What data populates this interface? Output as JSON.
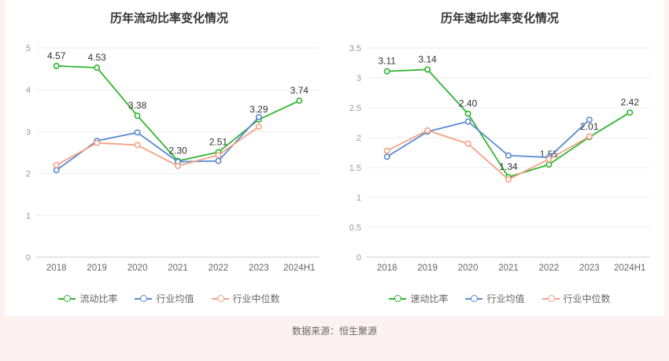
{
  "page": {
    "source_note": "数据来源：恒生聚源",
    "background_color": "#fdf1f1"
  },
  "colors": {
    "green": "#2eb52e",
    "blue": "#5b8ad4",
    "orange": "#f4a286",
    "grid": "#ededed",
    "axis": "#cccccc",
    "ytick_text": "#999999",
    "xtick_text": "#666666",
    "value_label_text": "#333333"
  },
  "chart_data": [
    {
      "type": "line",
      "title": "历年流动比率变化情况",
      "categories": [
        "2018",
        "2019",
        "2020",
        "2021",
        "2022",
        "2023",
        "2024H1"
      ],
      "ylim": [
        0,
        5
      ],
      "yticks": [
        0,
        1,
        2,
        3,
        4,
        5
      ],
      "grid": true,
      "legend_position": "bottom",
      "series": [
        {
          "name": "流动比率",
          "color": "green",
          "labeled": true,
          "values": [
            4.57,
            4.53,
            3.38,
            2.3,
            2.51,
            3.29,
            3.74
          ],
          "labels": [
            "4.57",
            "4.53",
            "3.38",
            "2.30",
            "2.51",
            "3.29",
            "3.74"
          ]
        },
        {
          "name": "行业均值",
          "color": "blue",
          "labeled": false,
          "values": [
            2.08,
            2.78,
            2.98,
            2.28,
            2.3,
            3.35,
            null
          ]
        },
        {
          "name": "行业中位数",
          "color": "orange",
          "labeled": false,
          "values": [
            2.2,
            2.73,
            2.68,
            2.18,
            2.44,
            3.12,
            null
          ]
        }
      ]
    },
    {
      "type": "line",
      "title": "历年速动比率变化情况",
      "categories": [
        "2018",
        "2019",
        "2020",
        "2021",
        "2022",
        "2023",
        "2024H1"
      ],
      "ylim": [
        0,
        3.5
      ],
      "yticks": [
        0,
        0.5,
        1,
        1.5,
        2,
        2.5,
        3,
        3.5
      ],
      "grid": true,
      "legend_position": "bottom",
      "series": [
        {
          "name": "速动比率",
          "color": "green",
          "labeled": true,
          "values": [
            3.11,
            3.14,
            2.4,
            1.34,
            1.55,
            2.01,
            2.42
          ],
          "labels": [
            "3.11",
            "3.14",
            "2.40",
            "1.34",
            "1.55",
            "2.01",
            "2.42"
          ]
        },
        {
          "name": "行业均值",
          "color": "blue",
          "labeled": false,
          "values": [
            1.68,
            2.1,
            2.27,
            1.7,
            1.67,
            2.3,
            null
          ]
        },
        {
          "name": "行业中位数",
          "color": "orange",
          "labeled": false,
          "values": [
            1.78,
            2.12,
            1.9,
            1.3,
            1.64,
            2.02,
            null
          ]
        }
      ]
    }
  ]
}
